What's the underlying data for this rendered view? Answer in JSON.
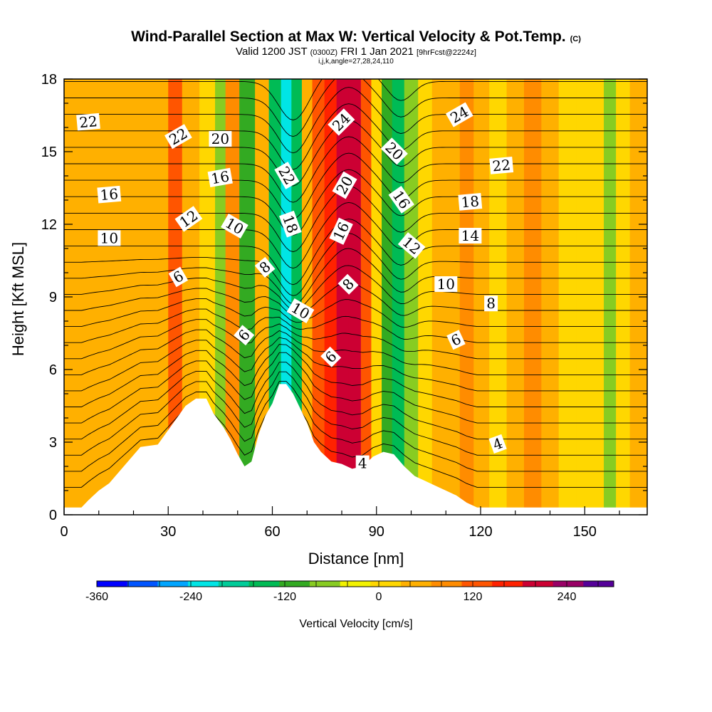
{
  "title": "Wind-Parallel Section at Max W: Vertical Velocity & Pot.Temp.",
  "copyright": "(C)",
  "subtitle_valid": "Valid 1200 JST",
  "subtitle_utc": "(0300Z)",
  "subtitle_date": "FRI 1 Jan 2021",
  "subtitle_fcst": "[9hrFcst@2224z]",
  "subtitle_params": "i,j,k,angle=27,28,24,110",
  "colors": {
    "frame": "#000000",
    "terrain": "#ffffff",
    "scale": [
      "#0000ff",
      "#0055ff",
      "#00a5ff",
      "#00e5e5",
      "#00cc99",
      "#00bb55",
      "#33aa22",
      "#88cc22",
      "#f2f200",
      "#ffd700",
      "#ffb000",
      "#ff8c00",
      "#ff5500",
      "#ff2200",
      "#cc0033",
      "#990066",
      "#550099"
    ]
  },
  "chart_data": {
    "type": "heatmap",
    "xlabel": "Distance [nm]",
    "ylabel": "Height [Kft MSL]",
    "xlim": [
      0,
      168
    ],
    "ylim": [
      0,
      18
    ],
    "xticks": [
      0,
      30,
      60,
      90,
      120,
      150
    ],
    "yticks": [
      0,
      3,
      6,
      9,
      12,
      15,
      18
    ],
    "grid": false,
    "colorbar": {
      "label": "Vertical Velocity [cm/s]",
      "min": -360,
      "max": 300,
      "step": 40,
      "ticks": [
        -360,
        -240,
        -120,
        0,
        120,
        240
      ]
    },
    "velocity_columns": [
      {
        "x": 5,
        "w": 52
      },
      {
        "x": 10,
        "w": 55
      },
      {
        "x": 16,
        "w": 65
      },
      {
        "x": 24,
        "w": 42
      },
      {
        "x": 28,
        "w": 65
      },
      {
        "x": 32,
        "w": 120
      },
      {
        "x": 36,
        "w": 75
      },
      {
        "x": 42,
        "w": 25
      },
      {
        "x": 45,
        "w": -75
      },
      {
        "x": 48,
        "w": 95
      },
      {
        "x": 53,
        "w": -90
      },
      {
        "x": 57,
        "w": 55
      },
      {
        "x": 61,
        "w": -150
      },
      {
        "x": 64,
        "w": -215
      },
      {
        "x": 67,
        "w": -145
      },
      {
        "x": 70,
        "w": 65
      },
      {
        "x": 73,
        "w": 125
      },
      {
        "x": 77,
        "w": 175
      },
      {
        "x": 80,
        "w": 210
      },
      {
        "x": 84,
        "w": 225
      },
      {
        "x": 87,
        "w": 150
      },
      {
        "x": 90,
        "w": 25
      },
      {
        "x": 93,
        "w": -90
      },
      {
        "x": 96,
        "w": -125
      },
      {
        "x": 100,
        "w": -55
      },
      {
        "x": 104,
        "w": 35
      },
      {
        "x": 108,
        "w": 75
      },
      {
        "x": 112,
        "w": 45
      },
      {
        "x": 116,
        "w": 105
      },
      {
        "x": 120,
        "w": 55
      },
      {
        "x": 125,
        "w": 25
      },
      {
        "x": 130,
        "w": 55
      },
      {
        "x": 135,
        "w": 85
      },
      {
        "x": 140,
        "w": 45
      },
      {
        "x": 145,
        "w": 25
      },
      {
        "x": 150,
        "w": 5
      },
      {
        "x": 154,
        "w": 25
      },
      {
        "x": 157,
        "w": -65
      },
      {
        "x": 161,
        "w": 35
      },
      {
        "x": 165,
        "w": 55
      }
    ],
    "terrain": [
      [
        0,
        0.3
      ],
      [
        5,
        0.3
      ],
      [
        7,
        0.6
      ],
      [
        10,
        1.0
      ],
      [
        13,
        1.3
      ],
      [
        16,
        1.8
      ],
      [
        19,
        2.3
      ],
      [
        22,
        2.8
      ],
      [
        27,
        2.9
      ],
      [
        30,
        3.5
      ],
      [
        32,
        3.9
      ],
      [
        35,
        4.5
      ],
      [
        38,
        4.8
      ],
      [
        41,
        4.8
      ],
      [
        43,
        4.2
      ],
      [
        46,
        3.6
      ],
      [
        48,
        3.1
      ],
      [
        50,
        2.5
      ],
      [
        52,
        2.0
      ],
      [
        54,
        2.2
      ],
      [
        56,
        3.3
      ],
      [
        58,
        4.1
      ],
      [
        60,
        4.6
      ],
      [
        62,
        5.4
      ],
      [
        64,
        5.4
      ],
      [
        66,
        5.0
      ],
      [
        68,
        4.4
      ],
      [
        70,
        3.8
      ],
      [
        72,
        3.0
      ],
      [
        74,
        2.6
      ],
      [
        77,
        2.2
      ],
      [
        80,
        2.1
      ],
      [
        83,
        1.9
      ],
      [
        86,
        2.0
      ],
      [
        89,
        2.4
      ],
      [
        92,
        2.6
      ],
      [
        95,
        2.5
      ],
      [
        98,
        2.0
      ],
      [
        101,
        1.6
      ],
      [
        104,
        1.4
      ],
      [
        107,
        1.2
      ],
      [
        110,
        1.0
      ],
      [
        113,
        0.8
      ],
      [
        116,
        0.5
      ],
      [
        119,
        0.3
      ],
      [
        168,
        0.3
      ]
    ],
    "theta_contour_labels": [
      {
        "value": "22",
        "x": 7,
        "y": 16.2,
        "angle": -5
      },
      {
        "value": "22",
        "x": 33,
        "y": 15.6,
        "angle": -30
      },
      {
        "value": "20",
        "x": 45,
        "y": 15.5,
        "angle": 0
      },
      {
        "value": "16",
        "x": 45,
        "y": 13.9,
        "angle": -10
      },
      {
        "value": "16",
        "x": 13,
        "y": 13.2,
        "angle": -5
      },
      {
        "value": "12",
        "x": 36,
        "y": 12.2,
        "angle": -35
      },
      {
        "value": "10",
        "x": 49,
        "y": 11.9,
        "angle": 30
      },
      {
        "value": "10",
        "x": 13,
        "y": 11.4,
        "angle": 0
      },
      {
        "value": "6",
        "x": 33,
        "y": 9.8,
        "angle": -30
      },
      {
        "value": "8",
        "x": 58,
        "y": 10.2,
        "angle": -40
      },
      {
        "value": "22",
        "x": 64,
        "y": 14.0,
        "angle": 60
      },
      {
        "value": "18",
        "x": 65,
        "y": 12.0,
        "angle": 70
      },
      {
        "value": "10",
        "x": 68,
        "y": 8.4,
        "angle": 30
      },
      {
        "value": "6",
        "x": 52,
        "y": 7.4,
        "angle": -50
      },
      {
        "value": "24",
        "x": 80,
        "y": 16.2,
        "angle": -45
      },
      {
        "value": "20",
        "x": 81,
        "y": 13.6,
        "angle": -60
      },
      {
        "value": "16",
        "x": 80,
        "y": 11.7,
        "angle": -65
      },
      {
        "value": "8",
        "x": 82,
        "y": 9.5,
        "angle": -45
      },
      {
        "value": "6",
        "x": 77,
        "y": 6.5,
        "angle": -45
      },
      {
        "value": "20",
        "x": 95,
        "y": 15.0,
        "angle": 45
      },
      {
        "value": "16",
        "x": 97,
        "y": 13.0,
        "angle": 55
      },
      {
        "value": "12",
        "x": 100,
        "y": 11.1,
        "angle": 40
      },
      {
        "value": "24",
        "x": 114,
        "y": 16.5,
        "angle": -30
      },
      {
        "value": "22",
        "x": 126,
        "y": 14.4,
        "angle": -5
      },
      {
        "value": "18",
        "x": 117,
        "y": 12.9,
        "angle": -5
      },
      {
        "value": "14",
        "x": 117,
        "y": 11.5,
        "angle": 0
      },
      {
        "value": "10",
        "x": 110,
        "y": 9.5,
        "angle": 0
      },
      {
        "value": "8",
        "x": 123,
        "y": 8.7,
        "angle": 0
      },
      {
        "value": "6",
        "x": 113,
        "y": 7.2,
        "angle": -25
      },
      {
        "value": "4",
        "x": 125,
        "y": 2.9,
        "angle": -20
      },
      {
        "value": "4",
        "x": 86,
        "y": 2.1,
        "angle": 0
      }
    ]
  }
}
